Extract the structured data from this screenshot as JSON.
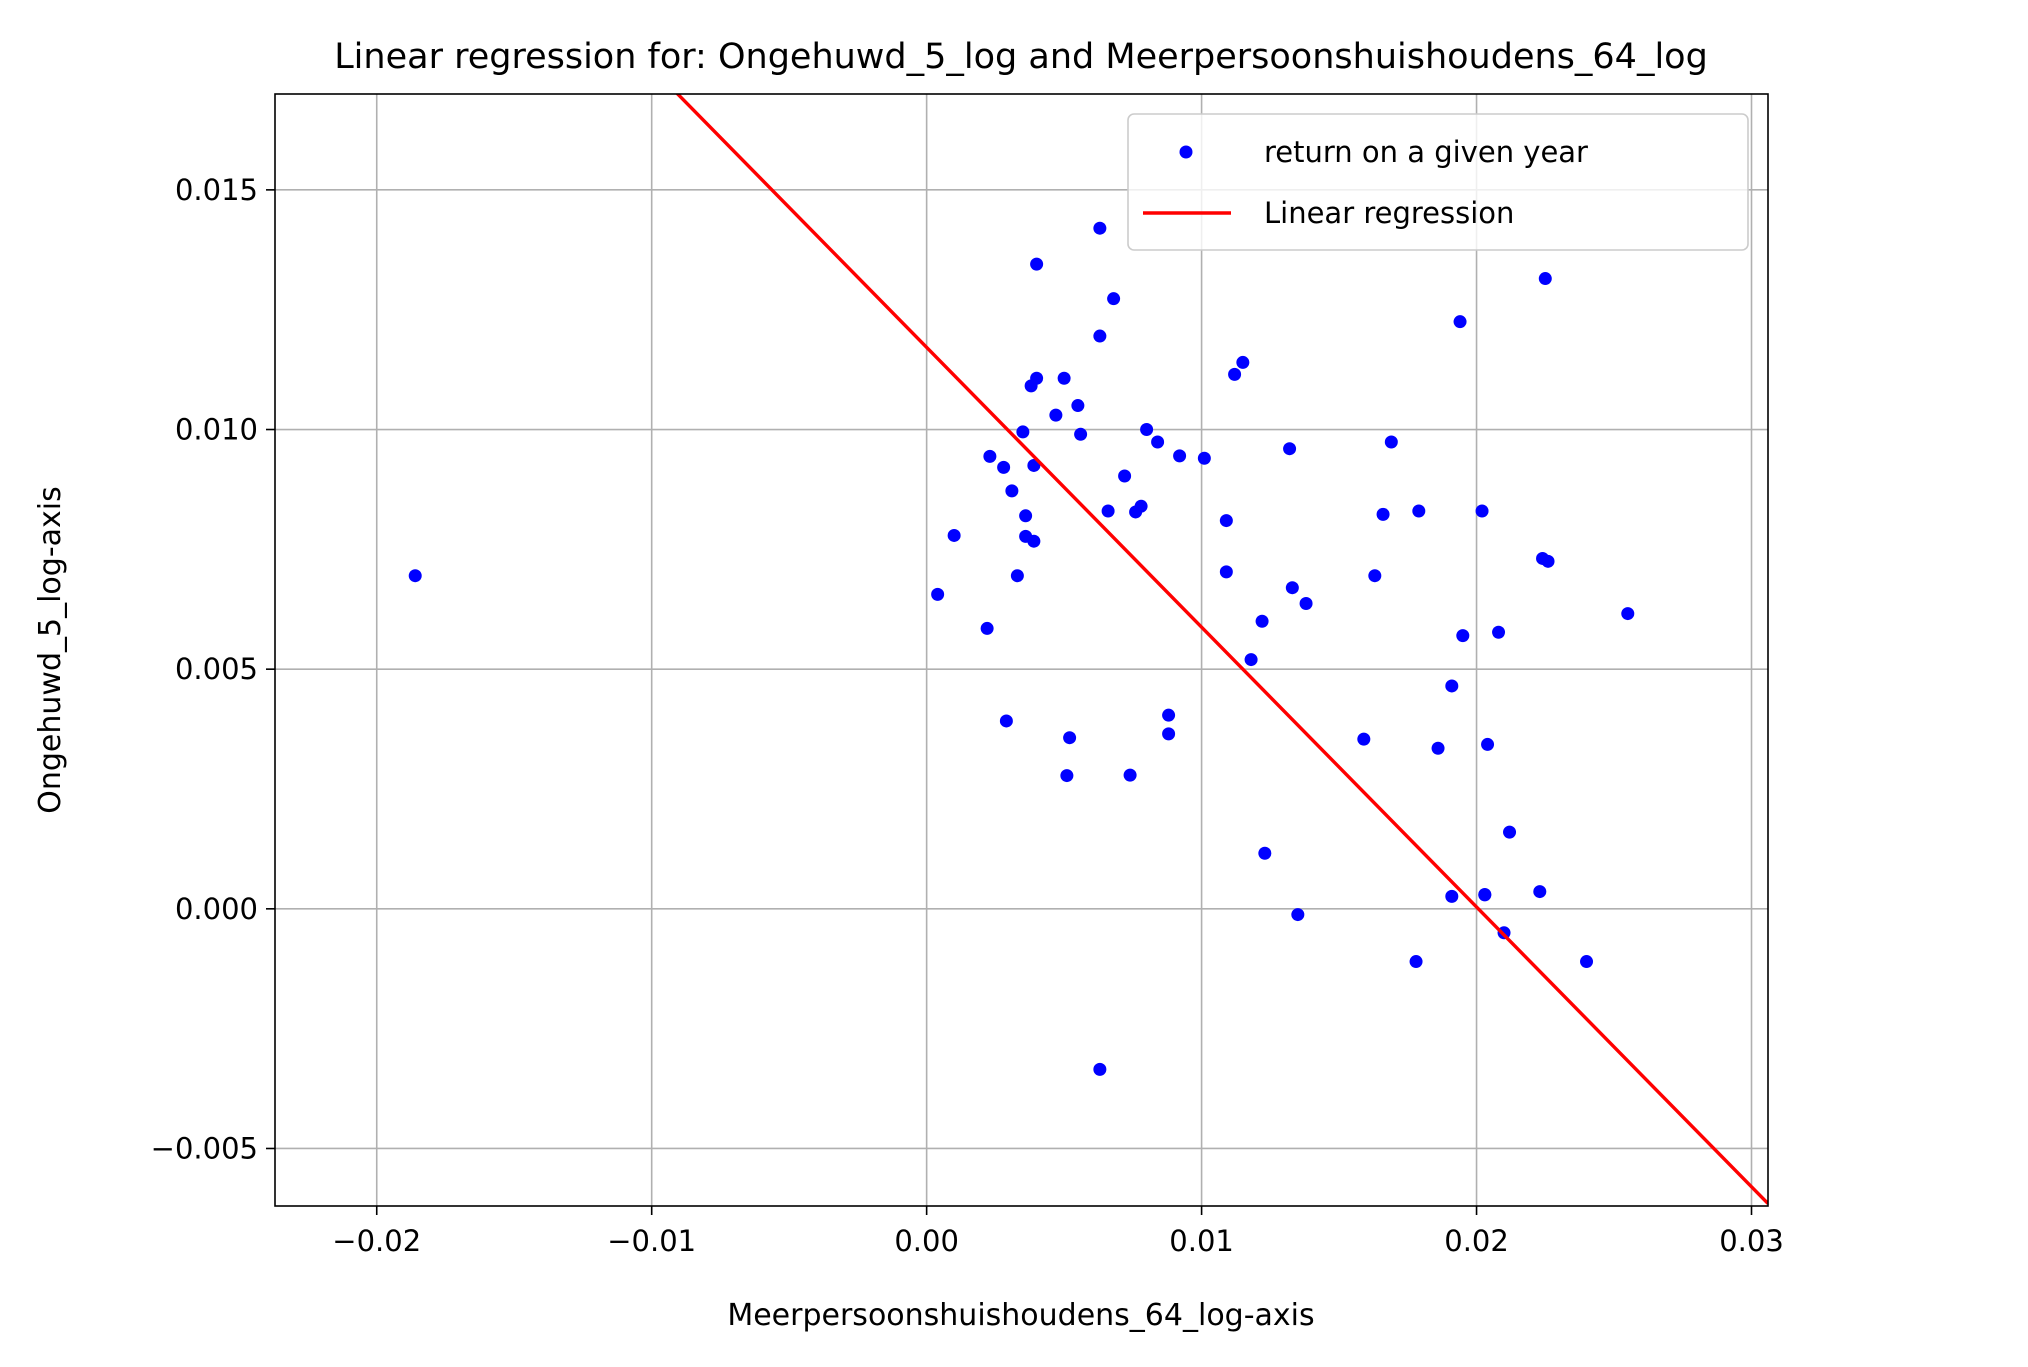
{
  "chart_data": {
    "type": "scatter",
    "title": "Linear regression for: Ongehuwd_5_log and Meerpersoonshuishoudens_64_log",
    "xlabel": "Meerpersoonshuishoudens_64_log-axis",
    "ylabel": "Ongehuwd_5_log-axis",
    "xlim": [
      -0.0237,
      0.0306
    ],
    "ylim": [
      -0.0062,
      0.017
    ],
    "xticks": [
      -0.02,
      -0.01,
      0.0,
      0.01,
      0.02,
      0.03
    ],
    "xtick_labels": [
      "−0.02",
      "−0.01",
      "0.00",
      "0.01",
      "0.02",
      "0.03"
    ],
    "yticks": [
      -0.005,
      0.0,
      0.005,
      0.01,
      0.015
    ],
    "ytick_labels": [
      "−0.005",
      "0.000",
      "0.005",
      "0.010",
      "0.015"
    ],
    "grid": true,
    "legend_position": "top-right",
    "colors": {
      "points": "#0000ff",
      "line": "#ff0000",
      "grid": "#b0b0b0"
    },
    "series": [
      {
        "name": "return on a given year",
        "type": "scatter",
        "x": [
          -0.0186,
          0.0004,
          0.001,
          0.0022,
          0.0023,
          0.0028,
          0.0029,
          0.0031,
          0.0033,
          0.0035,
          0.0036,
          0.0036,
          0.0038,
          0.0039,
          0.0039,
          0.004,
          0.004,
          0.0047,
          0.005,
          0.0051,
          0.0052,
          0.0055,
          0.0056,
          0.0063,
          0.0063,
          0.0063,
          0.0066,
          0.0068,
          0.0072,
          0.0074,
          0.0076,
          0.0078,
          0.008,
          0.0084,
          0.0088,
          0.0088,
          0.0092,
          0.0101,
          0.0109,
          0.0109,
          0.0112,
          0.0115,
          0.0118,
          0.0122,
          0.0123,
          0.0132,
          0.0133,
          0.0135,
          0.0138,
          0.0159,
          0.0163,
          0.0166,
          0.0169,
          0.0178,
          0.0179,
          0.0186,
          0.0191,
          0.0191,
          0.0194,
          0.0195,
          0.0202,
          0.0203,
          0.0203,
          0.0204,
          0.0208,
          0.021,
          0.0212,
          0.0223,
          0.0224,
          0.0225,
          0.0226,
          0.024,
          0.0255
        ],
        "y": [
          0.00695,
          0.00656,
          0.00779,
          0.00585,
          0.00944,
          0.00921,
          0.00392,
          0.00872,
          0.00695,
          0.00995,
          0.00777,
          0.0082,
          0.01091,
          0.00925,
          0.00767,
          0.01345,
          0.01107,
          0.0103,
          0.01107,
          0.00278,
          0.00357,
          0.0105,
          0.0099,
          0.0142,
          0.01195,
          -0.00335,
          0.0083,
          0.01273,
          0.00903,
          0.00279,
          0.00828,
          0.0084,
          0.01,
          0.00974,
          0.00404,
          0.00365,
          0.00945,
          0.0094,
          0.0081,
          0.00703,
          0.01115,
          0.0114,
          0.0052,
          0.006,
          0.00116,
          0.0096,
          0.0067,
          -0.00012,
          0.00637,
          0.00354,
          0.00695,
          0.00823,
          0.00974,
          -0.0011,
          0.0083,
          0.00335,
          0.00465,
          0.00026,
          0.01225,
          0.0057,
          0.0083,
          0.0003,
          0.00029,
          0.00343,
          0.00577,
          -0.0005,
          0.0016,
          0.00036,
          0.00731,
          0.01315,
          0.00725,
          -0.0011,
          0.00616
        ]
      },
      {
        "name": "Linear regression",
        "type": "line",
        "x": [
          -0.0237,
          0.0306
        ],
        "y": [
          0.02555,
          -0.00615
        ]
      }
    ]
  }
}
